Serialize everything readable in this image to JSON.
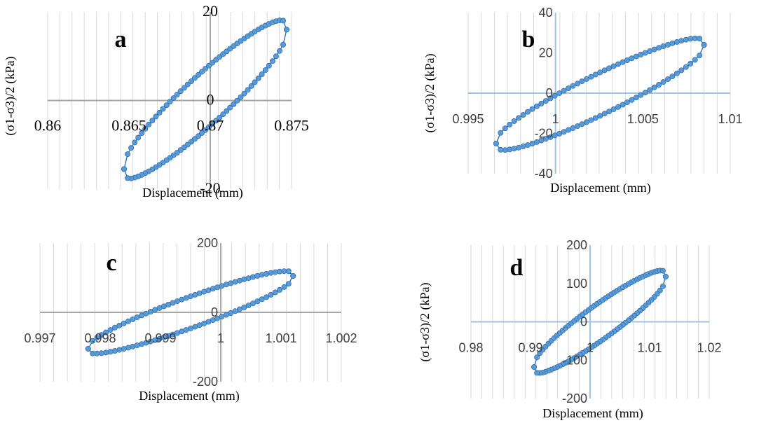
{
  "chart_data": [
    {
      "type": "scatter",
      "panel": "a",
      "xlabel": "Displacement (mm)",
      "ylabel": "(σ1-σ3)/2 (kPa)",
      "xlim": [
        0.86,
        0.875
      ],
      "ylim": [
        -20,
        20
      ],
      "x_ticks": [
        "0.86",
        "0.865",
        "0.87",
        "0.875"
      ],
      "y_ticks": [
        "20",
        "0",
        "-20"
      ],
      "x_min_tick": 0.86,
      "x_max_tick": 0.875,
      "loop": {
        "x_min": 0.8647,
        "y_at_xmin": -15.5,
        "x_max": 0.8747,
        "y_at_xmax": 16.0
      },
      "grid": true
    },
    {
      "type": "scatter",
      "panel": "b",
      "xlabel": "Displacement (mm)",
      "ylabel": "(σ1-σ3)/2 (kPa)",
      "xlim": [
        0.995,
        1.01
      ],
      "ylim": [
        -40,
        40
      ],
      "x_ticks": [
        "0.995",
        "1",
        "1.005",
        "1.01"
      ],
      "y_ticks": [
        "40",
        "20",
        "0",
        "-20",
        "-40"
      ],
      "loop": {
        "x_min": 0.9966,
        "y_at_xmin": -25.0,
        "x_max": 1.0085,
        "y_at_xmax": 24.0
      },
      "grid": true
    },
    {
      "type": "scatter",
      "panel": "c",
      "xlabel": "Displacement (mm)",
      "ylabel": "",
      "xlim": [
        0.997,
        1.002
      ],
      "ylim": [
        -200,
        200
      ],
      "x_ticks": [
        "0.997",
        "0.998",
        "0.999",
        "1",
        "1.001",
        "1.002"
      ],
      "y_ticks": [
        "200",
        "0",
        "-200"
      ],
      "loop": {
        "x_min": 0.9978,
        "y_at_xmin": -105.0,
        "x_max": 1.0012,
        "y_at_xmax": 105.0
      },
      "grid": true
    },
    {
      "type": "scatter",
      "panel": "d",
      "xlabel": "Displacement (mm)",
      "ylabel": "(σ1-σ3)/2 (kPa)",
      "xlim": [
        0.98,
        1.02
      ],
      "ylim": [
        -200,
        200
      ],
      "x_ticks": [
        "0.98",
        "0.99",
        "1",
        "1.01",
        "1.02"
      ],
      "y_ticks": [
        "200",
        "100",
        "0",
        "-100",
        "-200"
      ],
      "loop": {
        "x_min": 0.9906,
        "y_at_xmin": -118.0,
        "x_max": 1.0127,
        "y_at_xmax": 118.0
      },
      "grid": true
    }
  ],
  "colors": {
    "marker_fill": "#5b9bd5",
    "marker_stroke": "#2f6fb5",
    "line": "#2f6fb5",
    "grid": "#d9d9d9",
    "axis": "#a6a6a6",
    "axis_blue": "#9dc3e6"
  }
}
